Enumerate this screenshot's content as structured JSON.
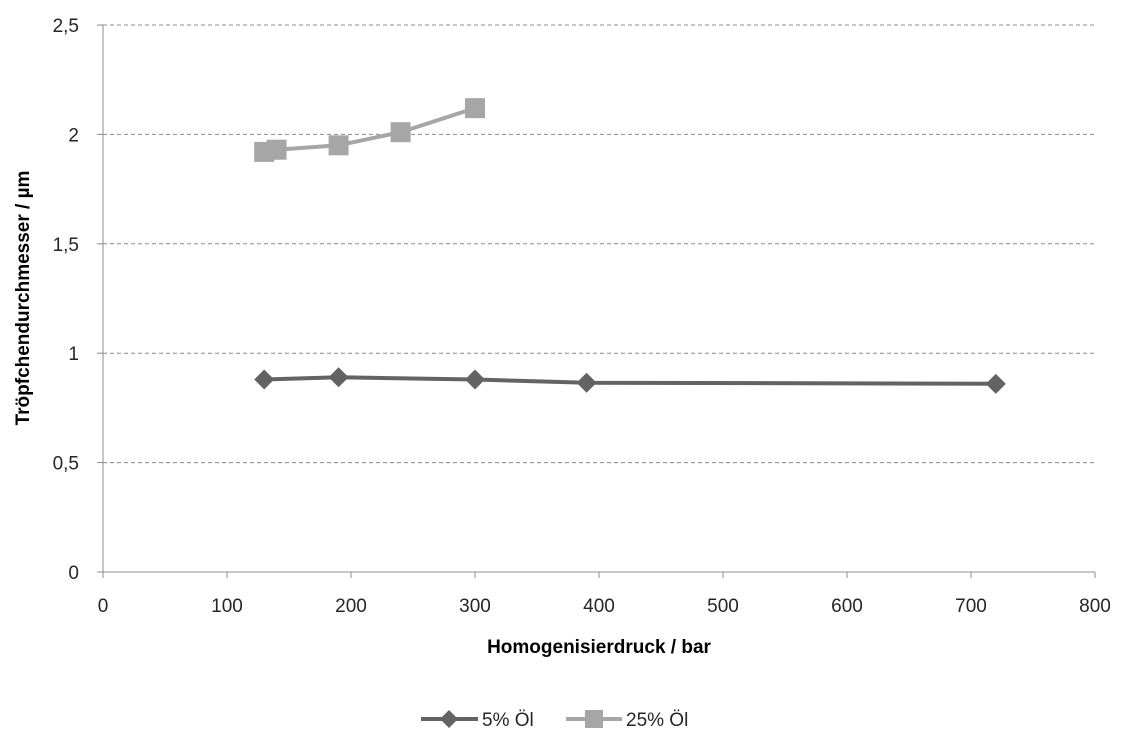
{
  "chart_data": {
    "type": "line",
    "title": "",
    "xlabel": "Homogenisierdruck / bar",
    "ylabel": "Tröpfchendurchmesser / µm",
    "xlim": [
      0,
      800
    ],
    "ylim": [
      0,
      2.5
    ],
    "x_ticks": [
      0,
      100,
      200,
      300,
      400,
      500,
      600,
      700,
      800
    ],
    "x_tick_labels": [
      "0",
      "100",
      "200",
      "300",
      "400",
      "500",
      "600",
      "700",
      "800"
    ],
    "y_ticks": [
      0,
      0.5,
      1,
      1.5,
      2,
      2.5
    ],
    "y_tick_labels": [
      "0",
      "0,5",
      "1",
      "1,5",
      "2",
      "2,5"
    ],
    "grid": "horizontal-dashed",
    "legend_position": "bottom-center",
    "series": [
      {
        "name": "5% Öl",
        "marker": "diamond",
        "color": "#636363",
        "points": [
          {
            "x": 130,
            "y": 0.88
          },
          {
            "x": 190,
            "y": 0.89
          },
          {
            "x": 300,
            "y": 0.88
          },
          {
            "x": 390,
            "y": 0.865
          },
          {
            "x": 720,
            "y": 0.86
          }
        ]
      },
      {
        "name": "25% Öl",
        "marker": "square",
        "color": "#a6a6a6",
        "points": [
          {
            "x": 130,
            "y": 1.92
          },
          {
            "x": 140,
            "y": 1.93
          },
          {
            "x": 190,
            "y": 1.95
          },
          {
            "x": 240,
            "y": 2.01
          },
          {
            "x": 300,
            "y": 2.12
          }
        ]
      }
    ]
  }
}
